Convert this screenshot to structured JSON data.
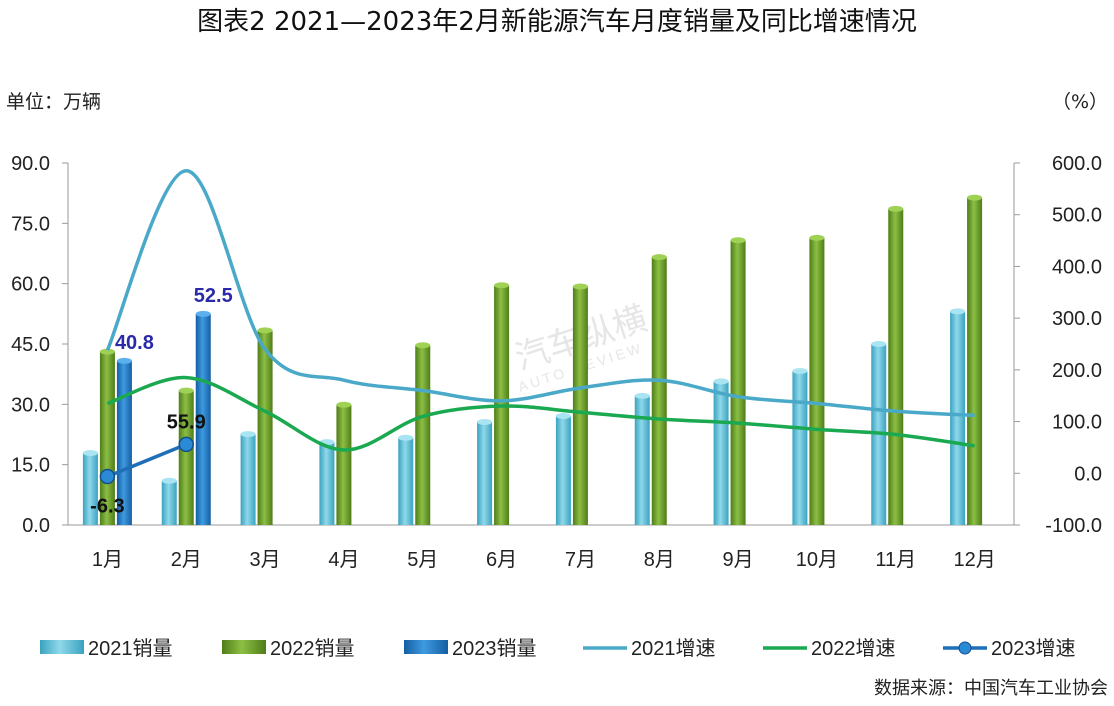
{
  "title": "图表2    2021—2023年2月新能源汽车月度销量及同比增速情况",
  "unit_left": "单位：万辆",
  "unit_right": "（%）",
  "source": "数据来源：中国汽车工业协会",
  "watermark": "汽车纵横",
  "watermark_sub": "AUTO REVIEW",
  "colors": {
    "bar2021": "#5bbfd6",
    "bar2022": "#6b9a2a",
    "bar2023": "#1f78c4",
    "line2021": "#4aa9c8",
    "line2022": "#1aa850",
    "line2023": "#1f6fb8",
    "annotation_blue": "#2a2aa8"
  },
  "chart_data": {
    "type": "bar",
    "categories": [
      "1月",
      "2月",
      "3月",
      "4月",
      "5月",
      "6月",
      "7月",
      "8月",
      "9月",
      "10月",
      "11月",
      "12月"
    ],
    "y_left": {
      "ylim": [
        0,
        90
      ],
      "ticks": [
        "0.0",
        "15.0",
        "30.0",
        "45.0",
        "60.0",
        "75.0",
        "90.0"
      ]
    },
    "y_right": {
      "ylim": [
        -100,
        600
      ],
      "ticks": [
        "-100.0",
        "0.0",
        "100.0",
        "200.0",
        "300.0",
        "400.0",
        "500.0",
        "600.0"
      ]
    },
    "bar_series": [
      {
        "name": "2021销量",
        "values": [
          17.9,
          11.0,
          22.6,
          20.6,
          21.7,
          25.6,
          27.1,
          32.1,
          35.7,
          38.3,
          45.0,
          53.1
        ]
      },
      {
        "name": "2022销量",
        "values": [
          43.1,
          33.4,
          48.4,
          29.9,
          44.7,
          59.6,
          59.3,
          66.6,
          70.8,
          71.4,
          78.6,
          81.4
        ]
      },
      {
        "name": "2023销量",
        "values": [
          40.8,
          52.5
        ]
      }
    ],
    "line_series": [
      {
        "name": "2021增速",
        "axis": "right",
        "values": [
          238,
          585,
          240,
          180,
          160,
          140,
          165,
          180,
          148,
          135,
          120,
          112
        ]
      },
      {
        "name": "2022增速",
        "axis": "right",
        "values": [
          135,
          185,
          120,
          45,
          110,
          130,
          118,
          105,
          97,
          85,
          75,
          53
        ]
      },
      {
        "name": "2023增速",
        "axis": "right",
        "values": [
          -6.3,
          55.9
        ]
      }
    ],
    "annotations": [
      {
        "category": "1月",
        "series": "2023销量",
        "text": "40.8"
      },
      {
        "category": "2月",
        "series": "2023销量",
        "text": "52.5"
      },
      {
        "category": "1月",
        "series": "2023增速",
        "text": "-6.3"
      },
      {
        "category": "2月",
        "series": "2023增速",
        "text": "55.9"
      }
    ],
    "legend": [
      "2021销量",
      "2022销量",
      "2023销量",
      "2021增速",
      "2022增速",
      "2023增速"
    ],
    "legend_position": "bottom",
    "grid": false
  }
}
